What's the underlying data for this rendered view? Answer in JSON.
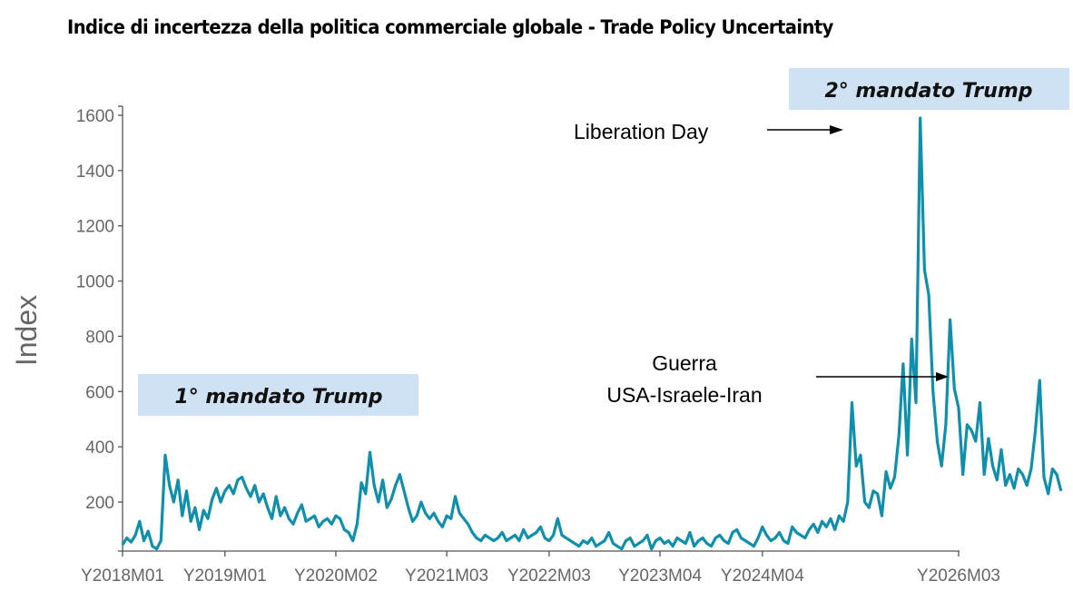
{
  "title": "Indice di incertezza della politica commerciale globale - Trade Policy Uncertainty",
  "chart_data": {
    "type": "line",
    "title": "Indice di incertezza della politica commerciale globale - Trade Policy Uncertainty",
    "xlabel": "",
    "ylabel": "Index",
    "ylim": [
      25,
      1620
    ],
    "x_range_months": [
      "Y2018M01",
      "Y2026M03"
    ],
    "grid": false,
    "yticks": [
      200,
      400,
      600,
      800,
      1000,
      1200,
      1400,
      1600
    ],
    "xticks": [
      {
        "label": "Y2018M01",
        "month_index": 0
      },
      {
        "label": "Y2019M01",
        "month_index": 12
      },
      {
        "label": "Y2020M02",
        "month_index": 25
      },
      {
        "label": "Y2021M03",
        "month_index": 38
      },
      {
        "label": "Y2022M03",
        "month_index": 50
      },
      {
        "label": "Y2023M04",
        "month_index": 63
      },
      {
        "label": "Y2024M04",
        "month_index": 75
      },
      {
        "label": "Y2026M03",
        "month_index": 98
      }
    ],
    "series": [
      {
        "name": "Trade Policy Uncertainty",
        "color": "#0f8fab",
        "x_unit": "months since Y2018M01",
        "x_step": 0.5,
        "values": [
          45,
          70,
          55,
          80,
          130,
          60,
          95,
          40,
          30,
          60,
          370,
          260,
          200,
          280,
          150,
          240,
          130,
          180,
          100,
          170,
          140,
          210,
          250,
          200,
          240,
          260,
          230,
          280,
          290,
          250,
          220,
          260,
          200,
          230,
          180,
          140,
          220,
          150,
          180,
          140,
          120,
          160,
          190,
          130,
          140,
          150,
          110,
          130,
          140,
          120,
          150,
          140,
          100,
          90,
          60,
          120,
          270,
          230,
          380,
          260,
          200,
          280,
          180,
          210,
          260,
          300,
          240,
          180,
          130,
          150,
          200,
          160,
          140,
          160,
          130,
          110,
          150,
          140,
          220,
          160,
          140,
          120,
          90,
          70,
          60,
          80,
          70,
          60,
          70,
          90,
          60,
          70,
          80,
          60,
          100,
          70,
          80,
          90,
          110,
          70,
          60,
          80,
          140,
          80,
          70,
          60,
          50,
          40,
          60,
          50,
          70,
          40,
          50,
          60,
          90,
          50,
          40,
          30,
          60,
          70,
          40,
          50,
          60,
          80,
          30,
          60,
          70,
          50,
          60,
          40,
          70,
          60,
          50,
          90,
          40,
          60,
          70,
          50,
          40,
          70,
          80,
          60,
          50,
          90,
          100,
          70,
          60,
          50,
          40,
          70,
          110,
          80,
          60,
          70,
          90,
          60,
          50,
          110,
          90,
          80,
          70,
          100,
          120,
          90,
          130,
          110,
          140,
          100,
          150,
          130,
          200,
          560,
          330,
          370,
          200,
          180,
          240,
          230,
          150,
          310,
          250,
          290,
          440,
          700,
          370,
          790,
          560,
          1590,
          1040,
          950,
          600,
          420,
          330,
          480,
          860,
          610,
          540,
          300,
          480,
          460,
          420,
          560,
          300,
          430,
          330,
          280,
          390,
          260,
          300,
          250,
          320,
          300,
          260,
          320,
          460,
          640,
          290,
          230,
          320,
          300,
          240
        ]
      }
    ],
    "annotations": [
      {
        "text": "Liberation Day",
        "arrow": "right"
      },
      {
        "text_lines": [
          "Guerra",
          "USA-Israele-Iran"
        ],
        "arrow": "right"
      }
    ],
    "period_boxes": [
      {
        "label": "1° mandato Trump",
        "color": "#cfe2f3"
      },
      {
        "label": "2° mandato Trump",
        "color": "#cfe2f3"
      }
    ]
  }
}
